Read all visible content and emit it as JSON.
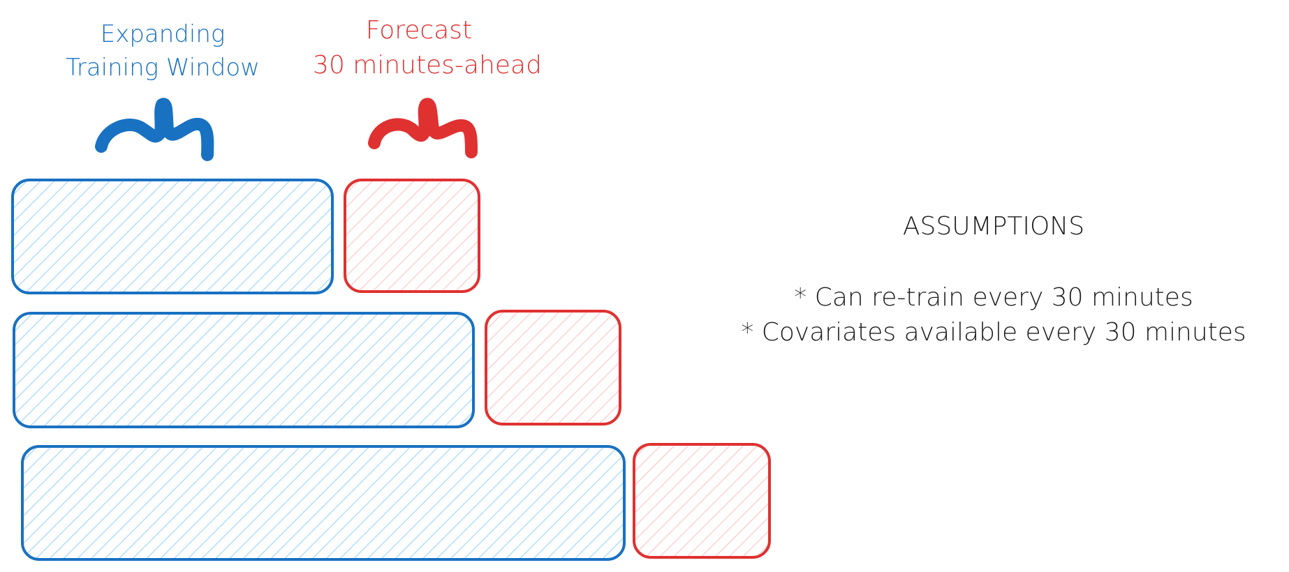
{
  "labels": {
    "training_line1": "Expanding",
    "training_line2": "Training Window",
    "forecast_line1": "Forecast",
    "forecast_line2": "30 minutes-ahead"
  },
  "assumptions": {
    "title": "ASSUMPTIONS",
    "items": [
      "* Can re-train every 30 minutes",
      "* Covariates available every 30 minutes"
    ]
  },
  "colors": {
    "training": "#1971c2",
    "training_fill": "#a5d8ff",
    "forecast": "#e03131",
    "forecast_fill": "#ffc9c9",
    "text": "#1e1e1e"
  },
  "icons": [
    "brace-squiggle-blue-icon",
    "brace-squiggle-red-icon"
  ]
}
